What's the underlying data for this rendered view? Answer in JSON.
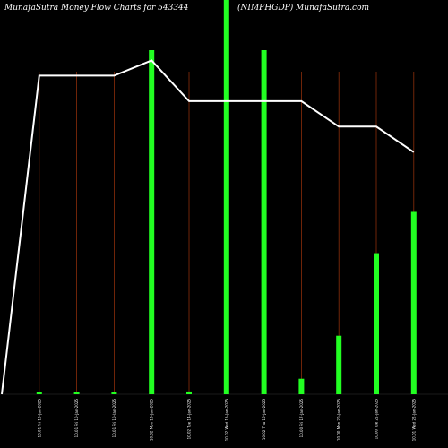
{
  "header": {
    "left_title": "MunafaSutra  Money Flow  Charts for 543344",
    "right_title": "(NIMFHGDP) MunafaSutra.com"
  },
  "colors": {
    "background": "#000000",
    "bar": "#22ff22",
    "gridline": "#8b2e0a",
    "line": "#ffffff",
    "text": "#ffffff"
  },
  "chart_data": {
    "type": "bar",
    "title": "MunafaSutra  Money Flow  Charts for 543344",
    "subtitle": "(NIMFHGDP) MunafaSutra.com",
    "categories": [
      "",
      "10.01 Fri 10-Jan-2025",
      "10.01 Fri 10-Jan-2025",
      "10.01 Fri 10-Jan-2025",
      "10.02 Mon 13-Jan-2025",
      "10.02 Tue 14-Jan-2025",
      "10.02 Wed 15-Jan-2025",
      "10.02 Thu 16-Jan-2025",
      "10.00 Fri 17-Jan-2025",
      "10.00 Mon 20-Jan-2025",
      "10.00 Tue 21-Jan-2025",
      "10.01 Wed 22-Jan-2025"
    ],
    "series": [
      {
        "type": "bar",
        "values": [
          0,
          0.5,
          0.5,
          0.5,
          100,
          0.8,
          120,
          100,
          4.5,
          17,
          41,
          53
        ]
      },
      {
        "type": "line",
        "values": [
          0,
          10.01,
          10.01,
          10.01,
          10.016,
          10.0,
          10.0,
          10.0,
          10.0,
          9.99,
          9.99,
          9.98
        ]
      }
    ],
    "bar_axis": {
      "ylim": [
        0,
        100
      ]
    },
    "line_axis": {
      "ylim": [
        9.885,
        10.02
      ]
    },
    "grid": false
  }
}
